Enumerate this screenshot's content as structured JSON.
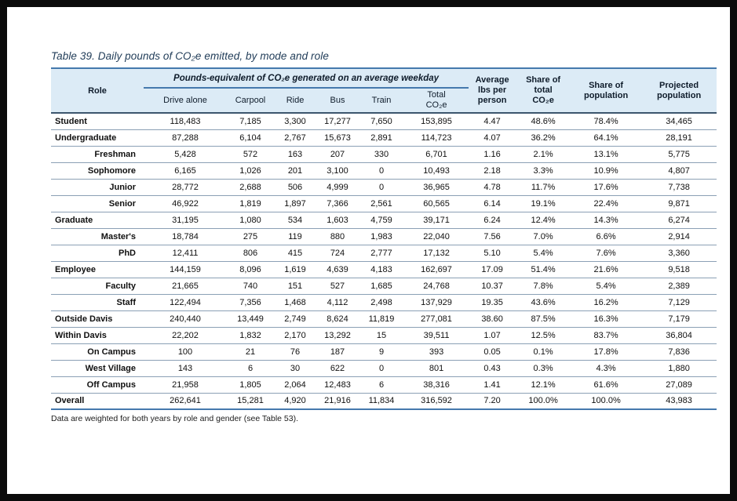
{
  "page": {
    "title": "Table 39. Daily pounds of CO₂e emitted, by mode and role",
    "footnote": "Data are weighted for both years by role and gender (see Table 53)."
  },
  "table": {
    "role_header": "Role",
    "group_header": "Pounds-equivalent of CO₂e generated on an average weekday",
    "sub_headers": [
      "Drive alone",
      "Carpool",
      "Ride",
      "Bus",
      "Train",
      "Total\nCO₂e"
    ],
    "right_headers": [
      "Average\nlbs per\nperson",
      "Share of\ntotal\nCO₂e",
      "Share of\npopulation",
      "Projected\npopulation"
    ],
    "rows": [
      {
        "label": "Student",
        "indent": false,
        "values": [
          "118,483",
          "7,185",
          "3,300",
          "17,277",
          "7,650",
          "153,895",
          "4.47",
          "48.6%",
          "78.4%",
          "34,465"
        ]
      },
      {
        "label": "Undergraduate",
        "indent": false,
        "values": [
          "87,288",
          "6,104",
          "2,767",
          "15,673",
          "2,891",
          "114,723",
          "4.07",
          "36.2%",
          "64.1%",
          "28,191"
        ]
      },
      {
        "label": "Freshman",
        "indent": true,
        "values": [
          "5,428",
          "572",
          "163",
          "207",
          "330",
          "6,701",
          "1.16",
          "2.1%",
          "13.1%",
          "5,775"
        ]
      },
      {
        "label": "Sophomore",
        "indent": true,
        "values": [
          "6,165",
          "1,026",
          "201",
          "3,100",
          "0",
          "10,493",
          "2.18",
          "3.3%",
          "10.9%",
          "4,807"
        ]
      },
      {
        "label": "Junior",
        "indent": true,
        "values": [
          "28,772",
          "2,688",
          "506",
          "4,999",
          "0",
          "36,965",
          "4.78",
          "11.7%",
          "17.6%",
          "7,738"
        ]
      },
      {
        "label": "Senior",
        "indent": true,
        "values": [
          "46,922",
          "1,819",
          "1,897",
          "7,366",
          "2,561",
          "60,565",
          "6.14",
          "19.1%",
          "22.4%",
          "9,871"
        ]
      },
      {
        "label": "Graduate",
        "indent": false,
        "values": [
          "31,195",
          "1,080",
          "534",
          "1,603",
          "4,759",
          "39,171",
          "6.24",
          "12.4%",
          "14.3%",
          "6,274"
        ]
      },
      {
        "label": "Master's",
        "indent": true,
        "values": [
          "18,784",
          "275",
          "119",
          "880",
          "1,983",
          "22,040",
          "7.56",
          "7.0%",
          "6.6%",
          "2,914"
        ]
      },
      {
        "label": "PhD",
        "indent": true,
        "values": [
          "12,411",
          "806",
          "415",
          "724",
          "2,777",
          "17,132",
          "5.10",
          "5.4%",
          "7.6%",
          "3,360"
        ]
      },
      {
        "label": "Employee",
        "indent": false,
        "values": [
          "144,159",
          "8,096",
          "1,619",
          "4,639",
          "4,183",
          "162,697",
          "17.09",
          "51.4%",
          "21.6%",
          "9,518"
        ]
      },
      {
        "label": "Faculty",
        "indent": true,
        "values": [
          "21,665",
          "740",
          "151",
          "527",
          "1,685",
          "24,768",
          "10.37",
          "7.8%",
          "5.4%",
          "2,389"
        ]
      },
      {
        "label": "Staff",
        "indent": true,
        "values": [
          "122,494",
          "7,356",
          "1,468",
          "4,112",
          "2,498",
          "137,929",
          "19.35",
          "43.6%",
          "16.2%",
          "7,129"
        ]
      },
      {
        "label": "Outside Davis",
        "indent": false,
        "values": [
          "240,440",
          "13,449",
          "2,749",
          "8,624",
          "11,819",
          "277,081",
          "38.60",
          "87.5%",
          "16.3%",
          "7,179"
        ]
      },
      {
        "label": "Within Davis",
        "indent": false,
        "values": [
          "22,202",
          "1,832",
          "2,170",
          "13,292",
          "15",
          "39,511",
          "1.07",
          "12.5%",
          "83.7%",
          "36,804"
        ]
      },
      {
        "label": "On Campus",
        "indent": true,
        "values": [
          "100",
          "21",
          "76",
          "187",
          "9",
          "393",
          "0.05",
          "0.1%",
          "17.8%",
          "7,836"
        ]
      },
      {
        "label": "West Village",
        "indent": true,
        "values": [
          "143",
          "6",
          "30",
          "622",
          "0",
          "801",
          "0.43",
          "0.3%",
          "4.3%",
          "1,880"
        ]
      },
      {
        "label": "Off Campus",
        "indent": true,
        "values": [
          "21,958",
          "1,805",
          "2,064",
          "12,483",
          "6",
          "38,316",
          "1.41",
          "12.1%",
          "61.6%",
          "27,089"
        ]
      },
      {
        "label": "Overall",
        "indent": false,
        "values": [
          "262,641",
          "15,281",
          "4,920",
          "21,916",
          "11,834",
          "316,592",
          "7.20",
          "100.0%",
          "100.0%",
          "43,983"
        ]
      }
    ]
  }
}
